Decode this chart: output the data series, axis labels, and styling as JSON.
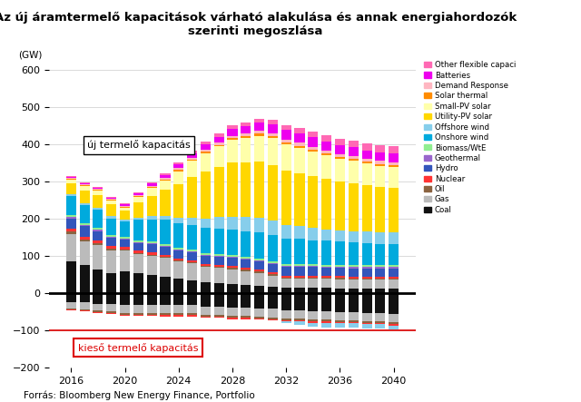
{
  "title": "Az új áramtermelő kapacitások várható alakulása és annak energiahordozók\nszerinti megoszlása",
  "footer": "Forrás: Bloomberg New Energy Finance, Portfolio",
  "years": [
    2016,
    2017,
    2018,
    2019,
    2020,
    2021,
    2022,
    2023,
    2024,
    2025,
    2026,
    2027,
    2028,
    2029,
    2030,
    2031,
    2032,
    2033,
    2034,
    2035,
    2036,
    2037,
    2038,
    2039,
    2040
  ],
  "ylim": [
    -200,
    620
  ],
  "ylabel": "(GW)",
  "yticks": [
    -200,
    -100,
    0,
    100,
    200,
    300,
    400,
    500,
    600
  ],
  "annotation_new": "új termelő kapacitás",
  "annotation_retiring": "kieső termelő kapacitás",
  "colors": {
    "Other flexible capaci": "#FF69B4",
    "Batteries": "#EE00EE",
    "Demand Response": "#FFB6C1",
    "Solar thermal": "#FF8C00",
    "Small-PV solar": "#FFFFAA",
    "Utility-PV solar": "#FFD700",
    "Offshore wind": "#87CEEB",
    "Onshore wind": "#00AADD",
    "Biomass/WtE": "#90EE90",
    "Geothermal": "#9966CC",
    "Hydro": "#3355BB",
    "Nuclear": "#FF3333",
    "Oil": "#8B6340",
    "Gas": "#BBBBBB",
    "Coal": "#111111"
  },
  "positive_data": {
    "Coal": [
      85,
      75,
      65,
      55,
      60,
      55,
      50,
      45,
      40,
      35,
      30,
      28,
      25,
      22,
      20,
      18,
      15,
      15,
      15,
      14,
      13,
      12,
      12,
      12,
      12
    ],
    "Gas": [
      75,
      65,
      65,
      60,
      55,
      50,
      50,
      50,
      45,
      45,
      40,
      40,
      40,
      38,
      35,
      30,
      25,
      25,
      25,
      25,
      25,
      25,
      25,
      25,
      25
    ],
    "Oil": [
      5,
      4,
      4,
      4,
      3,
      3,
      3,
      3,
      3,
      3,
      3,
      3,
      3,
      3,
      3,
      3,
      3,
      3,
      3,
      3,
      3,
      3,
      3,
      3,
      3
    ],
    "Nuclear": [
      8,
      8,
      8,
      7,
      6,
      6,
      6,
      5,
      5,
      5,
      5,
      5,
      5,
      5,
      5,
      5,
      5,
      5,
      5,
      5,
      5,
      5,
      5,
      5,
      5
    ],
    "Hydro": [
      28,
      28,
      25,
      22,
      20,
      20,
      22,
      22,
      22,
      22,
      22,
      22,
      22,
      22,
      22,
      22,
      22,
      22,
      22,
      22,
      22,
      22,
      22,
      22,
      22
    ],
    "Geothermal": [
      3,
      3,
      3,
      3,
      3,
      3,
      3,
      3,
      3,
      3,
      3,
      3,
      3,
      3,
      3,
      3,
      3,
      3,
      3,
      3,
      3,
      3,
      3,
      3,
      3
    ],
    "Biomass/WtE": [
      6,
      6,
      6,
      5,
      5,
      5,
      5,
      5,
      5,
      5,
      5,
      5,
      5,
      5,
      5,
      5,
      5,
      5,
      5,
      5,
      5,
      5,
      5,
      5,
      5
    ],
    "Onshore wind": [
      52,
      48,
      48,
      45,
      40,
      55,
      60,
      65,
      65,
      65,
      68,
      68,
      68,
      68,
      70,
      70,
      68,
      68,
      65,
      65,
      63,
      62,
      60,
      58,
      58
    ],
    "Offshore wind": [
      4,
      4,
      5,
      6,
      5,
      6,
      8,
      10,
      15,
      20,
      25,
      30,
      35,
      38,
      40,
      40,
      38,
      35,
      32,
      30,
      30,
      30,
      30,
      30,
      30
    ],
    "Utility-PV solar": [
      30,
      35,
      35,
      32,
      25,
      40,
      55,
      70,
      90,
      110,
      125,
      135,
      145,
      148,
      150,
      148,
      145,
      142,
      140,
      135,
      130,
      128,
      125,
      122,
      120
    ],
    "Small-PV solar": [
      10,
      12,
      12,
      10,
      8,
      15,
      20,
      25,
      35,
      42,
      50,
      55,
      60,
      65,
      70,
      72,
      70,
      68,
      65,
      63,
      61,
      60,
      58,
      57,
      56
    ],
    "Solar thermal": [
      2,
      2,
      2,
      2,
      2,
      2,
      3,
      3,
      3,
      4,
      4,
      4,
      5,
      5,
      5,
      5,
      5,
      5,
      5,
      5,
      5,
      5,
      5,
      5,
      5
    ],
    "Demand Response": [
      3,
      3,
      3,
      3,
      3,
      3,
      4,
      4,
      5,
      5,
      6,
      6,
      7,
      7,
      8,
      8,
      8,
      8,
      8,
      8,
      8,
      8,
      8,
      8,
      8
    ],
    "Batteries": [
      1,
      2,
      2,
      3,
      4,
      5,
      6,
      8,
      10,
      12,
      14,
      16,
      18,
      20,
      22,
      24,
      26,
      26,
      26,
      25,
      24,
      24,
      23,
      23,
      23
    ],
    "Other flexible capaci": [
      2,
      2,
      2,
      2,
      2,
      3,
      3,
      4,
      5,
      6,
      7,
      8,
      9,
      10,
      11,
      12,
      13,
      14,
      15,
      16,
      17,
      18,
      19,
      20,
      21
    ]
  },
  "negative_data": {
    "Coal": [
      -25,
      -25,
      -28,
      -28,
      -30,
      -30,
      -30,
      -32,
      -32,
      -32,
      -35,
      -35,
      -38,
      -38,
      -40,
      -42,
      -45,
      -45,
      -48,
      -48,
      -50,
      -50,
      -52,
      -52,
      -55
    ],
    "Gas": [
      -15,
      -18,
      -18,
      -20,
      -22,
      -22,
      -22,
      -22,
      -22,
      -22,
      -22,
      -22,
      -22,
      -22,
      -22,
      -22,
      -22,
      -22,
      -22,
      -22,
      -22,
      -22,
      -22,
      -22,
      -22
    ],
    "Oil": [
      -3,
      -3,
      -4,
      -4,
      -5,
      -5,
      -5,
      -5,
      -5,
      -5,
      -5,
      -5,
      -5,
      -5,
      -5,
      -5,
      -5,
      -5,
      -5,
      -5,
      -5,
      -5,
      -5,
      -5,
      -5
    ],
    "Nuclear": [
      -3,
      -3,
      -3,
      -4,
      -4,
      -4,
      -4,
      -4,
      -4,
      -4,
      -4,
      -4,
      -4,
      -4,
      -4,
      -4,
      -4,
      -4,
      -4,
      -4,
      -4,
      -4,
      -4,
      -4,
      -4
    ],
    "Hydro": [
      0,
      0,
      0,
      0,
      0,
      0,
      0,
      0,
      0,
      0,
      0,
      0,
      0,
      0,
      0,
      0,
      0,
      0,
      0,
      0,
      0,
      0,
      0,
      0,
      0
    ],
    "Geothermal": [
      0,
      0,
      0,
      0,
      0,
      0,
      0,
      0,
      0,
      0,
      0,
      0,
      0,
      0,
      0,
      0,
      0,
      0,
      0,
      0,
      0,
      0,
      0,
      0,
      0
    ],
    "Biomass/WtE": [
      0,
      0,
      0,
      0,
      0,
      0,
      0,
      0,
      0,
      0,
      0,
      0,
      0,
      0,
      0,
      0,
      0,
      0,
      0,
      0,
      0,
      0,
      0,
      0,
      0
    ],
    "Onshore wind": [
      0,
      0,
      0,
      0,
      0,
      0,
      0,
      0,
      0,
      0,
      0,
      0,
      0,
      0,
      0,
      0,
      0,
      0,
      0,
      0,
      0,
      0,
      0,
      0,
      0
    ],
    "Offshore wind": [
      0,
      0,
      0,
      0,
      0,
      0,
      0,
      0,
      0,
      0,
      0,
      0,
      0,
      0,
      0,
      0,
      -5,
      -8,
      -10,
      -12,
      -12,
      -12,
      -12,
      -12,
      -12
    ],
    "Utility-PV solar": [
      0,
      0,
      0,
      0,
      0,
      0,
      0,
      0,
      0,
      0,
      0,
      0,
      0,
      0,
      0,
      0,
      0,
      0,
      0,
      0,
      0,
      0,
      0,
      0,
      0
    ],
    "Small-PV solar": [
      0,
      0,
      0,
      0,
      0,
      0,
      0,
      0,
      0,
      0,
      0,
      0,
      0,
      0,
      0,
      0,
      0,
      0,
      0,
      0,
      0,
      0,
      0,
      0,
      0
    ],
    "Solar thermal": [
      0,
      0,
      0,
      0,
      0,
      0,
      0,
      0,
      0,
      0,
      0,
      0,
      0,
      0,
      0,
      0,
      0,
      0,
      0,
      0,
      0,
      0,
      0,
      0,
      0
    ],
    "Demand Response": [
      0,
      0,
      0,
      0,
      0,
      0,
      0,
      0,
      0,
      0,
      0,
      0,
      0,
      0,
      0,
      0,
      0,
      0,
      0,
      0,
      0,
      0,
      0,
      0,
      0
    ],
    "Batteries": [
      0,
      0,
      0,
      0,
      0,
      0,
      0,
      0,
      0,
      0,
      0,
      0,
      0,
      0,
      0,
      0,
      0,
      0,
      0,
      0,
      0,
      0,
      0,
      0,
      0
    ],
    "Other flexible capaci": [
      0,
      0,
      0,
      0,
      0,
      0,
      0,
      0,
      0,
      0,
      0,
      0,
      0,
      0,
      0,
      0,
      0,
      0,
      0,
      0,
      0,
      0,
      0,
      0,
      0
    ]
  }
}
